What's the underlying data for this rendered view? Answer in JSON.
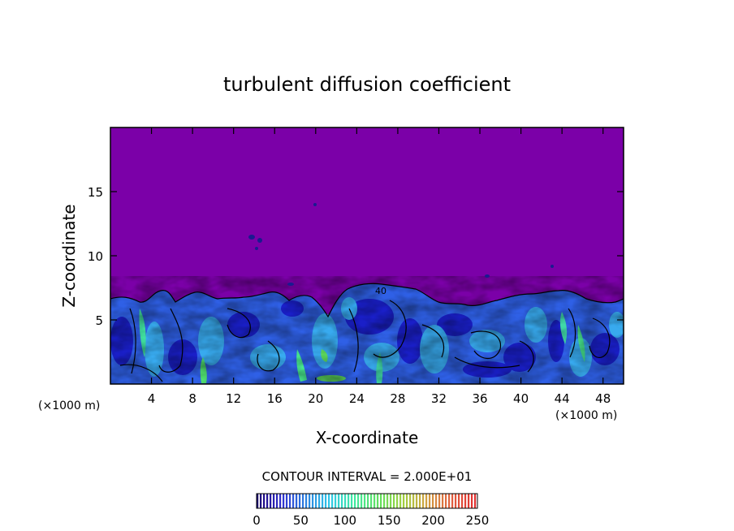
{
  "chart_data": {
    "type": "heatmap",
    "title": "turbulent diffusion coefficient",
    "xlabel": "X-coordinate",
    "ylabel": "Z-coordinate",
    "x_unit_left": "(×1000 m)",
    "x_unit_right": "(×1000 m)",
    "xlim": [
      0,
      50
    ],
    "ylim": [
      0,
      20
    ],
    "x_ticks": [
      "4",
      "8",
      "12",
      "16",
      "20",
      "24",
      "28",
      "32",
      "36",
      "40",
      "44",
      "48"
    ],
    "y_ticks": [
      "5",
      "10",
      "15"
    ],
    "contour_interval_label": "CONTOUR INTERVAL = 2.000E+01",
    "contour_label": "40",
    "colorbar": {
      "min": 0,
      "max": 250,
      "tick_labels": [
        "0",
        "50",
        "100",
        "150",
        "200",
        "250"
      ],
      "colors": [
        "#1a0070",
        "#3030d0",
        "#2a80e0",
        "#30c8e8",
        "#40e8a0",
        "#60e060",
        "#a0d040",
        "#d0a040",
        "#e06040",
        "#e03030"
      ]
    },
    "background_color": "#7b00a8",
    "boundary_layer_top_km_approx": 6.5,
    "grid": false
  }
}
